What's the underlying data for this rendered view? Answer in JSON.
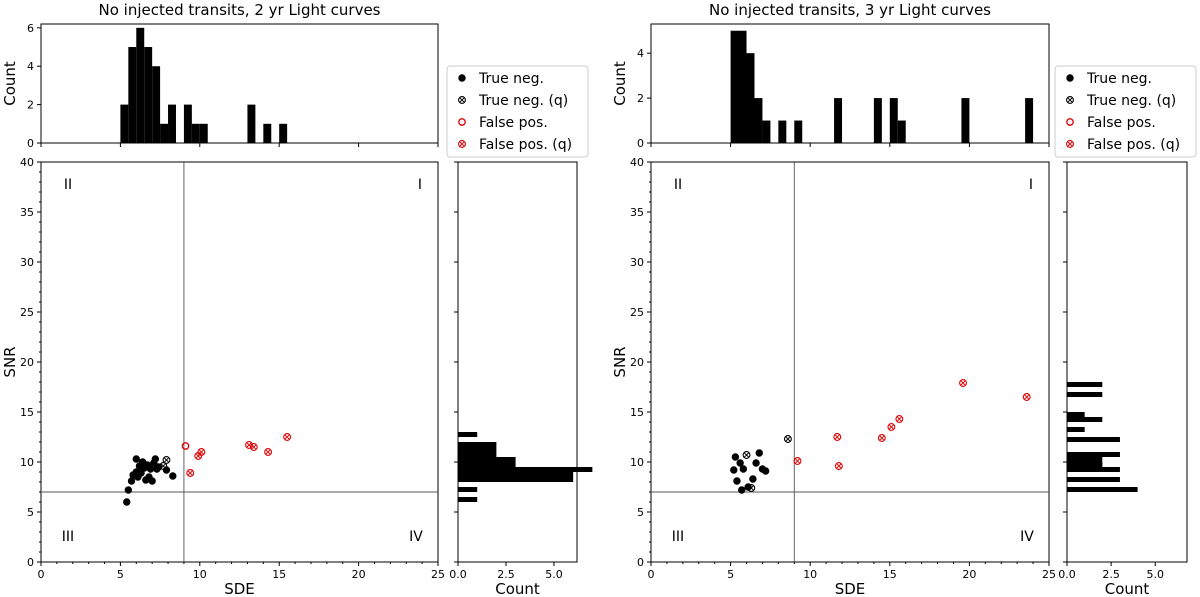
{
  "chart_data": [
    {
      "panel": "left",
      "type": "scatter",
      "title": "No injected transits, 2 yr Light curves",
      "xlabel": "SDE",
      "ylabel": "SNR",
      "xlim": [
        0,
        25
      ],
      "ylim": [
        0,
        40
      ],
      "xticks": [
        0,
        5,
        10,
        15,
        20,
        25
      ],
      "yticks": [
        0,
        5,
        10,
        15,
        20,
        25,
        30,
        35,
        40
      ],
      "thresholds": {
        "sde": 9,
        "snr": 7
      },
      "quadrant_labels": [
        "I",
        "II",
        "III",
        "IV"
      ],
      "series": [
        {
          "name": "True neg.",
          "marker": "filled-circle",
          "color": "#000000",
          "points": [
            [
              5.4,
              6.0
            ],
            [
              5.5,
              7.2
            ],
            [
              5.7,
              8.1
            ],
            [
              5.8,
              8.7
            ],
            [
              6.0,
              9.0
            ],
            [
              6.0,
              10.3
            ],
            [
              6.1,
              8.5
            ],
            [
              6.2,
              9.6
            ],
            [
              6.3,
              8.9
            ],
            [
              6.4,
              10.0
            ],
            [
              6.5,
              9.4
            ],
            [
              6.6,
              8.2
            ],
            [
              6.7,
              9.7
            ],
            [
              6.8,
              8.5
            ],
            [
              6.9,
              9.3
            ],
            [
              7.0,
              8.1
            ],
            [
              7.1,
              9.9
            ],
            [
              7.2,
              10.3
            ],
            [
              7.3,
              9.3
            ],
            [
              7.4,
              9.5
            ],
            [
              7.9,
              9.2
            ],
            [
              8.3,
              8.6
            ]
          ]
        },
        {
          "name": "True neg. (q)",
          "marker": "circle-x",
          "color": "#000000",
          "points": [
            [
              7.7,
              9.6
            ],
            [
              7.9,
              10.2
            ]
          ]
        },
        {
          "name": "False pos.",
          "marker": "open-circle",
          "color": "#e00000",
          "points": [
            [
              9.1,
              11.6
            ]
          ]
        },
        {
          "name": "False pos. (q)",
          "marker": "circle-x",
          "color": "#e00000",
          "points": [
            [
              9.4,
              8.9
            ],
            [
              9.9,
              10.6
            ],
            [
              10.1,
              11.0
            ],
            [
              13.1,
              11.7
            ],
            [
              13.4,
              11.5
            ],
            [
              14.3,
              11.0
            ],
            [
              15.5,
              12.5
            ]
          ]
        }
      ],
      "top_hist": {
        "ylabel": "Count",
        "yticks": [
          0,
          2,
          4,
          6
        ],
        "ylim": [
          0,
          6.2
        ],
        "bins": [
          [
            5.0,
            5.5,
            2
          ],
          [
            5.5,
            6.0,
            5
          ],
          [
            6.0,
            6.5,
            6
          ],
          [
            6.5,
            7.0,
            5
          ],
          [
            7.0,
            7.5,
            4
          ],
          [
            7.5,
            8.0,
            1
          ],
          [
            8.0,
            8.5,
            2
          ],
          [
            9.0,
            9.5,
            2
          ],
          [
            9.5,
            10.0,
            1
          ],
          [
            10.0,
            10.5,
            1
          ],
          [
            13.0,
            13.5,
            2
          ],
          [
            14.0,
            14.5,
            1
          ],
          [
            15.0,
            15.5,
            1
          ]
        ]
      },
      "right_hist": {
        "xlabel": "Count",
        "xticks": [
          0.0,
          2.5,
          5.0
        ],
        "tick_labels": [
          "0.0",
          "2.5",
          "5.0"
        ],
        "xlim": [
          0,
          6.2
        ],
        "bins": [
          [
            6.0,
            6.5,
            1
          ],
          [
            7.0,
            7.5,
            1
          ],
          [
            8.0,
            9.0,
            6
          ],
          [
            9.0,
            9.5,
            7
          ],
          [
            9.5,
            10.5,
            3
          ],
          [
            10.5,
            12.0,
            2
          ],
          [
            12.5,
            13.0,
            1
          ]
        ]
      }
    },
    {
      "panel": "right",
      "type": "scatter",
      "title": "No injected transits, 3 yr Light curves",
      "xlabel": "SDE",
      "ylabel": "SNR",
      "xlim": [
        0,
        25
      ],
      "ylim": [
        0,
        40
      ],
      "xticks": [
        0,
        5,
        10,
        15,
        20,
        25
      ],
      "yticks": [
        0,
        5,
        10,
        15,
        20,
        25,
        30,
        35,
        40
      ],
      "thresholds": {
        "sde": 9,
        "snr": 7
      },
      "quadrant_labels": [
        "I",
        "II",
        "III",
        "IV"
      ],
      "series": [
        {
          "name": "True neg.",
          "marker": "filled-circle",
          "color": "#000000",
          "points": [
            [
              5.2,
              9.2
            ],
            [
              5.3,
              10.5
            ],
            [
              5.4,
              8.1
            ],
            [
              5.6,
              9.9
            ],
            [
              5.7,
              7.2
            ],
            [
              5.8,
              9.3
            ],
            [
              6.1,
              7.5
            ],
            [
              6.4,
              8.3
            ],
            [
              6.6,
              9.9
            ],
            [
              6.8,
              10.9
            ],
            [
              7.0,
              9.3
            ],
            [
              7.2,
              9.1
            ]
          ]
        },
        {
          "name": "True neg. (q)",
          "marker": "circle-x",
          "color": "#000000",
          "points": [
            [
              6.0,
              10.7
            ],
            [
              6.3,
              7.4
            ],
            [
              8.6,
              12.3
            ]
          ]
        },
        {
          "name": "False pos.",
          "marker": "open-circle",
          "color": "#e00000",
          "points": []
        },
        {
          "name": "False pos. (q)",
          "marker": "circle-x",
          "color": "#e00000",
          "points": [
            [
              9.2,
              10.1
            ],
            [
              11.7,
              12.5
            ],
            [
              11.8,
              9.6
            ],
            [
              14.5,
              12.4
            ],
            [
              15.1,
              13.5
            ],
            [
              15.6,
              14.3
            ],
            [
              19.6,
              17.9
            ],
            [
              23.6,
              16.5
            ]
          ]
        }
      ],
      "top_hist": {
        "ylabel": "Count",
        "yticks": [
          0,
          2,
          4
        ],
        "ylim": [
          0,
          5.3
        ],
        "bins": [
          [
            5.0,
            6.0,
            5
          ],
          [
            6.0,
            6.5,
            4
          ],
          [
            6.5,
            7.0,
            2
          ],
          [
            7.0,
            7.5,
            1
          ],
          [
            8.0,
            8.5,
            1
          ],
          [
            9.0,
            9.5,
            1
          ],
          [
            11.5,
            12.0,
            2
          ],
          [
            14.0,
            14.5,
            2
          ],
          [
            15.0,
            15.5,
            2
          ],
          [
            15.5,
            16.0,
            1
          ],
          [
            19.5,
            20.0,
            2
          ],
          [
            23.5,
            24.0,
            2
          ]
        ]
      },
      "right_hist": {
        "xlabel": "Count",
        "xticks": [
          0.0,
          2.5,
          5.0
        ],
        "tick_labels": [
          "0.0",
          "2.5",
          "5.0"
        ],
        "xlim": [
          0,
          6.8
        ],
        "bins": [
          [
            7.0,
            7.5,
            4
          ],
          [
            8.0,
            8.5,
            3
          ],
          [
            9.0,
            10.0,
            2
          ],
          [
            9.0,
            9.5,
            3
          ],
          [
            9.5,
            10.5,
            2
          ],
          [
            10.5,
            11.0,
            3
          ],
          [
            12.0,
            12.5,
            3
          ],
          [
            13.0,
            13.5,
            1
          ],
          [
            14.0,
            14.5,
            2
          ],
          [
            14.5,
            15.0,
            1
          ],
          [
            16.5,
            17.0,
            2
          ],
          [
            17.5,
            18.0,
            2
          ]
        ]
      }
    }
  ]
}
